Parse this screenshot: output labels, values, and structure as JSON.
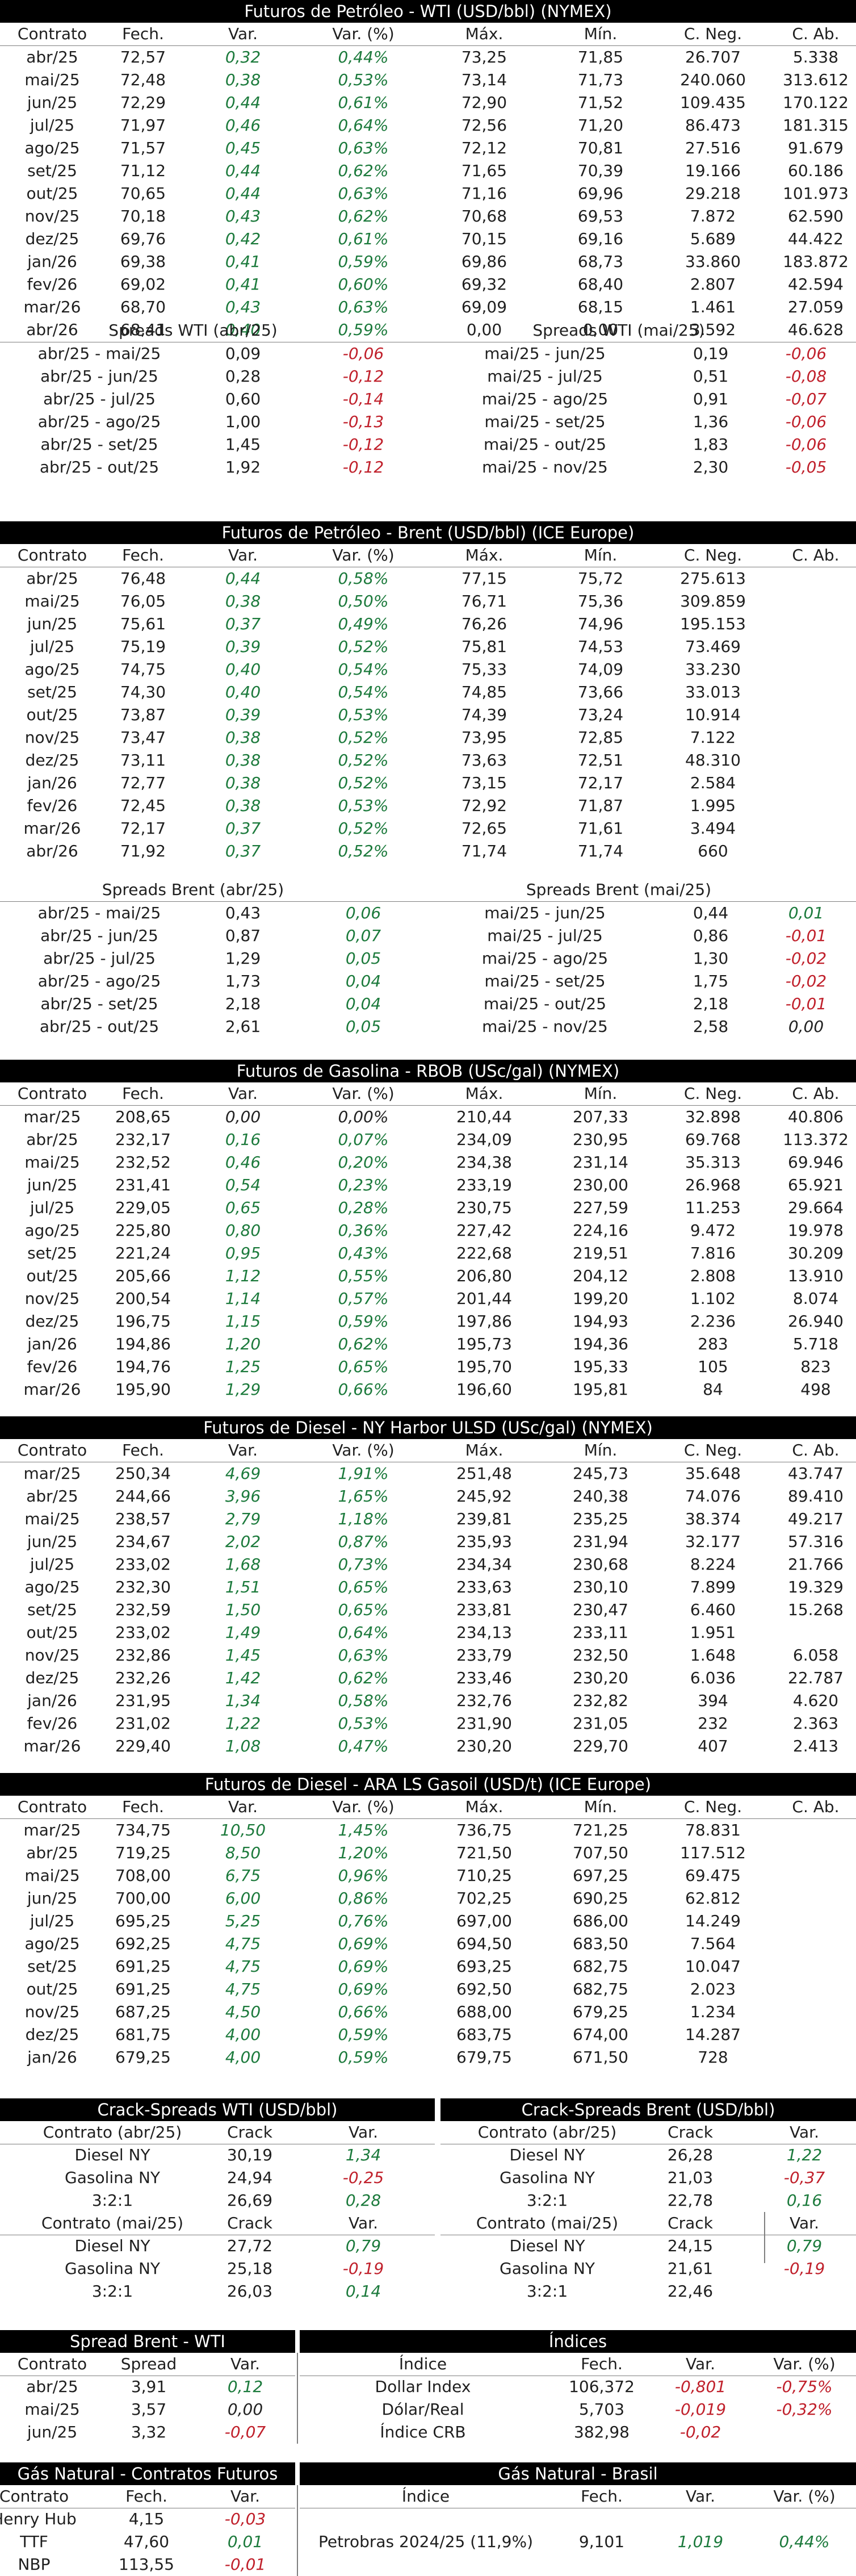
{
  "wti": {
    "title": "Futuros de Petróleo - WTI (USD/bbl) (NYMEX)",
    "headers": [
      "Contrato",
      "Fech.",
      "Var.",
      "Var. (%)",
      "Máx.",
      "Mín.",
      "C. Neg.",
      "C. Ab."
    ],
    "rows": [
      [
        "abr/25",
        "72,57",
        "0,32",
        "0,44%",
        "73,25",
        "71,85",
        "26.707",
        "5.338"
      ],
      [
        "mai/25",
        "72,48",
        "0,38",
        "0,53%",
        "73,14",
        "71,73",
        "240.060",
        "313.612"
      ],
      [
        "jun/25",
        "72,29",
        "0,44",
        "0,61%",
        "72,90",
        "71,52",
        "109.435",
        "170.122"
      ],
      [
        "jul/25",
        "71,97",
        "0,46",
        "0,64%",
        "72,56",
        "71,20",
        "86.473",
        "181.315"
      ],
      [
        "ago/25",
        "71,57",
        "0,45",
        "0,63%",
        "72,12",
        "70,81",
        "27.516",
        "91.679"
      ],
      [
        "set/25",
        "71,12",
        "0,44",
        "0,62%",
        "71,65",
        "70,39",
        "19.166",
        "60.186"
      ],
      [
        "out/25",
        "70,65",
        "0,44",
        "0,63%",
        "71,16",
        "69,96",
        "29.218",
        "101.973"
      ],
      [
        "nov/25",
        "70,18",
        "0,43",
        "0,62%",
        "70,68",
        "69,53",
        "7.872",
        "62.590"
      ],
      [
        "dez/25",
        "69,76",
        "0,42",
        "0,61%",
        "70,15",
        "69,16",
        "5.689",
        "44.422"
      ],
      [
        "jan/26",
        "69,38",
        "0,41",
        "0,59%",
        "69,86",
        "68,73",
        "33.860",
        "183.872"
      ],
      [
        "fev/26",
        "69,02",
        "0,41",
        "0,60%",
        "69,32",
        "68,40",
        "2.807",
        "42.594"
      ],
      [
        "mar/26",
        "68,70",
        "0,43",
        "0,63%",
        "69,09",
        "68,15",
        "1.461",
        "27.059"
      ],
      [
        "abr/26",
        "68,41",
        "0,40",
        "0,59%",
        "0,00",
        "0,00",
        "3.592",
        "46.628"
      ]
    ],
    "spreads_left_title": "Spreads WTI (abr/25)",
    "spreads_right_title": "Spreads WTI (mai/25)",
    "spreads_left": [
      [
        "abr/25 - mai/25",
        "0,09",
        "-0,06"
      ],
      [
        "abr/25 - jun/25",
        "0,28",
        "-0,12"
      ],
      [
        "abr/25 - jul/25",
        "0,60",
        "-0,14"
      ],
      [
        "abr/25 - ago/25",
        "1,00",
        "-0,13"
      ],
      [
        "abr/25 - set/25",
        "1,45",
        "-0,12"
      ],
      [
        "abr/25 - out/25",
        "1,92",
        "-0,12"
      ]
    ],
    "spreads_right": [
      [
        "mai/25 - jun/25",
        "0,19",
        "-0,06"
      ],
      [
        "mai/25 - jul/25",
        "0,51",
        "-0,08"
      ],
      [
        "mai/25 - ago/25",
        "0,91",
        "-0,07"
      ],
      [
        "mai/25 - set/25",
        "1,36",
        "-0,06"
      ],
      [
        "mai/25 - out/25",
        "1,83",
        "-0,06"
      ],
      [
        "mai/25 - nov/25",
        "2,30",
        "-0,05"
      ]
    ]
  },
  "brent": {
    "title": "Futuros de Petróleo - Brent (USD/bbl) (ICE Europe)",
    "headers": [
      "Contrato",
      "Fech.",
      "Var.",
      "Var. (%)",
      "Máx.",
      "Mín.",
      "C. Neg.",
      "C. Ab."
    ],
    "rows": [
      [
        "abr/25",
        "76,48",
        "0,44",
        "0,58%",
        "77,15",
        "75,72",
        "275.613",
        ""
      ],
      [
        "mai/25",
        "76,05",
        "0,38",
        "0,50%",
        "76,71",
        "75,36",
        "309.859",
        ""
      ],
      [
        "jun/25",
        "75,61",
        "0,37",
        "0,49%",
        "76,26",
        "74,96",
        "195.153",
        ""
      ],
      [
        "jul/25",
        "75,19",
        "0,39",
        "0,52%",
        "75,81",
        "74,53",
        "73.469",
        ""
      ],
      [
        "ago/25",
        "74,75",
        "0,40",
        "0,54%",
        "75,33",
        "74,09",
        "33.230",
        ""
      ],
      [
        "set/25",
        "74,30",
        "0,40",
        "0,54%",
        "74,85",
        "73,66",
        "33.013",
        ""
      ],
      [
        "out/25",
        "73,87",
        "0,39",
        "0,53%",
        "74,39",
        "73,24",
        "10.914",
        ""
      ],
      [
        "nov/25",
        "73,47",
        "0,38",
        "0,52%",
        "73,95",
        "72,85",
        "7.122",
        ""
      ],
      [
        "dez/25",
        "73,11",
        "0,38",
        "0,52%",
        "73,63",
        "72,51",
        "48.310",
        ""
      ],
      [
        "jan/26",
        "72,77",
        "0,38",
        "0,52%",
        "73,15",
        "72,17",
        "2.584",
        ""
      ],
      [
        "fev/26",
        "72,45",
        "0,38",
        "0,53%",
        "72,92",
        "71,87",
        "1.995",
        ""
      ],
      [
        "mar/26",
        "72,17",
        "0,37",
        "0,52%",
        "72,65",
        "71,61",
        "3.494",
        ""
      ],
      [
        "abr/26",
        "71,92",
        "0,37",
        "0,52%",
        "71,74",
        "71,74",
        "660",
        ""
      ]
    ],
    "spreads_left_title": "Spreads Brent (abr/25)",
    "spreads_right_title": "Spreads Brent (mai/25)",
    "spreads_left": [
      [
        "abr/25 - mai/25",
        "0,43",
        "0,06"
      ],
      [
        "abr/25 - jun/25",
        "0,87",
        "0,07"
      ],
      [
        "abr/25 - jul/25",
        "1,29",
        "0,05"
      ],
      [
        "abr/25 - ago/25",
        "1,73",
        "0,04"
      ],
      [
        "abr/25 - set/25",
        "2,18",
        "0,04"
      ],
      [
        "abr/25 - out/25",
        "2,61",
        "0,05"
      ]
    ],
    "spreads_right": [
      [
        "mai/25 - jun/25",
        "0,44",
        "0,01"
      ],
      [
        "mai/25 - jul/25",
        "0,86",
        "-0,01"
      ],
      [
        "mai/25 - ago/25",
        "1,30",
        "-0,02"
      ],
      [
        "mai/25 - set/25",
        "1,75",
        "-0,02"
      ],
      [
        "mai/25 - out/25",
        "2,18",
        "-0,01"
      ],
      [
        "mai/25 - nov/25",
        "2,58",
        "0,00"
      ]
    ]
  },
  "rbob": {
    "title": "Futuros de Gasolina - RBOB (USc/gal) (NYMEX)",
    "headers": [
      "Contrato",
      "Fech.",
      "Var.",
      "Var. (%)",
      "Máx.",
      "Mín.",
      "C. Neg.",
      "C. Ab."
    ],
    "rows": [
      [
        "mar/25",
        "208,65",
        "0,00",
        "0,00%",
        "210,44",
        "207,33",
        "32.898",
        "40.806"
      ],
      [
        "abr/25",
        "232,17",
        "0,16",
        "0,07%",
        "234,09",
        "230,95",
        "69.768",
        "113.372"
      ],
      [
        "mai/25",
        "232,52",
        "0,46",
        "0,20%",
        "234,38",
        "231,14",
        "35.313",
        "69.946"
      ],
      [
        "jun/25",
        "231,41",
        "0,54",
        "0,23%",
        "233,19",
        "230,00",
        "26.968",
        "65.921"
      ],
      [
        "jul/25",
        "229,05",
        "0,65",
        "0,28%",
        "230,75",
        "227,59",
        "11.253",
        "29.664"
      ],
      [
        "ago/25",
        "225,80",
        "0,80",
        "0,36%",
        "227,42",
        "224,16",
        "9.472",
        "19.978"
      ],
      [
        "set/25",
        "221,24",
        "0,95",
        "0,43%",
        "222,68",
        "219,51",
        "7.816",
        "30.209"
      ],
      [
        "out/25",
        "205,66",
        "1,12",
        "0,55%",
        "206,80",
        "204,12",
        "2.808",
        "13.910"
      ],
      [
        "nov/25",
        "200,54",
        "1,14",
        "0,57%",
        "201,44",
        "199,20",
        "1.102",
        "8.074"
      ],
      [
        "dez/25",
        "196,75",
        "1,15",
        "0,59%",
        "197,86",
        "194,93",
        "2.236",
        "26.940"
      ],
      [
        "jan/26",
        "194,86",
        "1,20",
        "0,62%",
        "195,73",
        "194,36",
        "283",
        "5.718"
      ],
      [
        "fev/26",
        "194,76",
        "1,25",
        "0,65%",
        "195,70",
        "195,33",
        "105",
        "823"
      ],
      [
        "mar/26",
        "195,90",
        "1,29",
        "0,66%",
        "196,60",
        "195,81",
        "84",
        "498"
      ]
    ]
  },
  "ulsd": {
    "title": "Futuros de Diesel - NY Harbor ULSD (USc/gal) (NYMEX)",
    "headers": [
      "Contrato",
      "Fech.",
      "Var.",
      "Var. (%)",
      "Máx.",
      "Mín.",
      "C. Neg.",
      "C. Ab."
    ],
    "rows": [
      [
        "mar/25",
        "250,34",
        "4,69",
        "1,91%",
        "251,48",
        "245,73",
        "35.648",
        "43.747"
      ],
      [
        "abr/25",
        "244,66",
        "3,96",
        "1,65%",
        "245,92",
        "240,38",
        "74.076",
        "89.410"
      ],
      [
        "mai/25",
        "238,57",
        "2,79",
        "1,18%",
        "239,81",
        "235,25",
        "38.374",
        "49.217"
      ],
      [
        "jun/25",
        "234,67",
        "2,02",
        "0,87%",
        "235,93",
        "231,94",
        "32.177",
        "57.316"
      ],
      [
        "jul/25",
        "233,02",
        "1,68",
        "0,73%",
        "234,34",
        "230,68",
        "8.224",
        "21.766"
      ],
      [
        "ago/25",
        "232,30",
        "1,51",
        "0,65%",
        "233,63",
        "230,10",
        "7.899",
        "19.329"
      ],
      [
        "set/25",
        "232,59",
        "1,50",
        "0,65%",
        "233,81",
        "230,47",
        "6.460",
        "15.268"
      ],
      [
        "out/25",
        "233,02",
        "1,49",
        "0,64%",
        "234,13",
        "233,11",
        "1.951",
        ""
      ],
      [
        "nov/25",
        "232,86",
        "1,45",
        "0,63%",
        "233,79",
        "232,50",
        "1.648",
        "6.058"
      ],
      [
        "dez/25",
        "232,26",
        "1,42",
        "0,62%",
        "233,46",
        "230,20",
        "6.036",
        "22.787"
      ],
      [
        "jan/26",
        "231,95",
        "1,34",
        "0,58%",
        "232,76",
        "232,82",
        "394",
        "4.620"
      ],
      [
        "fev/26",
        "231,02",
        "1,22",
        "0,53%",
        "231,90",
        "231,05",
        "232",
        "2.363"
      ],
      [
        "mar/26",
        "229,40",
        "1,08",
        "0,47%",
        "230,20",
        "229,70",
        "407",
        "2.413"
      ]
    ]
  },
  "gasoil": {
    "title": "Futuros de Diesel - ARA LS Gasoil (USD/t) (ICE Europe)",
    "headers": [
      "Contrato",
      "Fech.",
      "Var.",
      "Var. (%)",
      "Máx.",
      "Mín.",
      "C. Neg.",
      "C. Ab."
    ],
    "rows": [
      [
        "mar/25",
        "734,75",
        "10,50",
        "1,45%",
        "736,75",
        "721,25",
        "78.831",
        ""
      ],
      [
        "abr/25",
        "719,25",
        "8,50",
        "1,20%",
        "721,50",
        "707,50",
        "117.512",
        ""
      ],
      [
        "mai/25",
        "708,00",
        "6,75",
        "0,96%",
        "710,25",
        "697,25",
        "69.475",
        ""
      ],
      [
        "jun/25",
        "700,00",
        "6,00",
        "0,86%",
        "702,25",
        "690,25",
        "62.812",
        ""
      ],
      [
        "jul/25",
        "695,25",
        "5,25",
        "0,76%",
        "697,00",
        "686,00",
        "14.249",
        ""
      ],
      [
        "ago/25",
        "692,25",
        "4,75",
        "0,69%",
        "694,50",
        "683,50",
        "7.564",
        ""
      ],
      [
        "set/25",
        "691,25",
        "4,75",
        "0,69%",
        "693,25",
        "682,75",
        "10.047",
        ""
      ],
      [
        "out/25",
        "691,25",
        "4,75",
        "0,69%",
        "692,50",
        "682,75",
        "2.023",
        ""
      ],
      [
        "nov/25",
        "687,25",
        "4,50",
        "0,66%",
        "688,00",
        "679,25",
        "1.234",
        ""
      ],
      [
        "dez/25",
        "681,75",
        "4,00",
        "0,59%",
        "683,75",
        "674,00",
        "14.287",
        ""
      ],
      [
        "jan/26",
        "679,25",
        "4,00",
        "0,59%",
        "679,75",
        "671,50",
        "728",
        ""
      ]
    ]
  },
  "crack": {
    "wti_title": "Crack-Spreads WTI (USD/bbl)",
    "brent_title": "Crack-Spreads Brent (USD/bbl)",
    "left_h1": [
      "Contrato (abr/25)",
      "Crack",
      "Var."
    ],
    "left_rows1": [
      [
        "Diesel NY",
        "30,19",
        "1,34"
      ],
      [
        "Gasolina NY",
        "24,94",
        "-0,25"
      ],
      [
        "3:2:1",
        "26,69",
        "0,28"
      ]
    ],
    "left_h2": [
      "Contrato (mai/25)",
      "Crack",
      "Var."
    ],
    "left_rows2": [
      [
        "Diesel NY",
        "27,72",
        "0,79"
      ],
      [
        "Gasolina NY",
        "25,18",
        "-0,19"
      ],
      [
        "3:2:1",
        "26,03",
        "0,14"
      ]
    ],
    "right_h1": [
      "Contrato (abr/25)",
      "Crack",
      "Var."
    ],
    "right_rows1": [
      [
        "Diesel NY",
        "26,28",
        "1,22"
      ],
      [
        "Gasolina NY",
        "21,03",
        "-0,37"
      ],
      [
        "3:2:1",
        "22,78",
        "0,16"
      ]
    ],
    "right_h2": [
      "Contrato (mai/25)",
      "Crack",
      "Var."
    ],
    "right_rows2": [
      [
        "Diesel NY",
        "24,15",
        "0,79"
      ],
      [
        "Gasolina NY",
        "21,61",
        "-0,19"
      ],
      [
        "3:2:1",
        "22,46",
        ""
      ]
    ]
  },
  "spread_bw": {
    "title": "Spread Brent - WTI",
    "headers": [
      "Contrato",
      "Spread",
      "Var."
    ],
    "rows": [
      [
        "abr/25",
        "3,91",
        "0,12"
      ],
      [
        "mai/25",
        "3,57",
        "0,00"
      ],
      [
        "jun/25",
        "3,32",
        "-0,07"
      ]
    ]
  },
  "indices": {
    "title": "Índices",
    "headers": [
      "Índice",
      "Fech.",
      "Var.",
      "Var. (%)"
    ],
    "rows": [
      [
        "Dollar Index",
        "106,372",
        "-0,801",
        "-0,75%"
      ],
      [
        "Dólar/Real",
        "5,703",
        "-0,019",
        "-0,32%"
      ],
      [
        "Índice CRB",
        "382,98",
        "-0,02",
        ""
      ]
    ]
  },
  "gas_futures": {
    "title": "Gás Natural - Contratos Futuros",
    "headers": [
      "Contrato",
      "Fech.",
      "Var."
    ],
    "rows": [
      [
        "Henry Hub",
        "4,15",
        "-0,03"
      ],
      [
        "TTF",
        "47,60",
        "0,01"
      ],
      [
        "NBP",
        "113,55",
        "-0,01"
      ]
    ]
  },
  "gas_brasil": {
    "title": "Gás Natural - Brasil",
    "headers": [
      "Índice",
      "Fech.",
      "Var.",
      "Var. (%)"
    ],
    "rows": [
      [
        "Petrobras 2024/25 (11,9%)",
        "9,101",
        "1,019",
        "0,44%"
      ]
    ]
  },
  "colors": {
    "positive": "#1c7a3c",
    "negative": "#c0202b",
    "header_bg": "#000000",
    "rule": "#7f7f7f"
  }
}
